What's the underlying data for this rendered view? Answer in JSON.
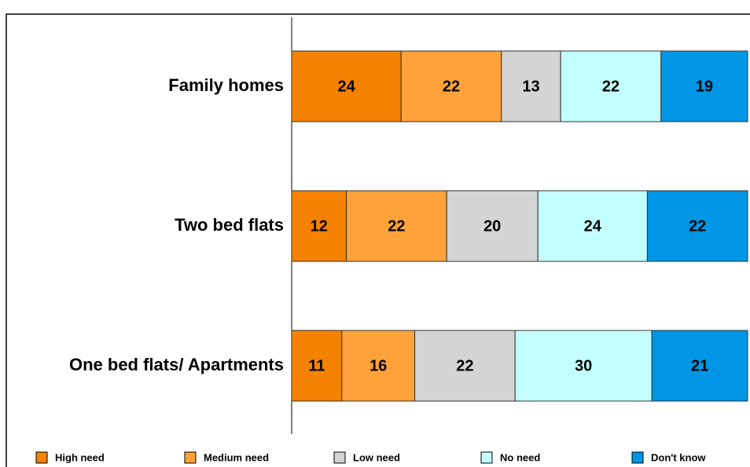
{
  "chart_data": {
    "type": "stacked_bar_horizontal",
    "categories": [
      "Family homes",
      "Two bed flats",
      "One bed flats/ Apartments"
    ],
    "series": [
      {
        "name": "High need",
        "color": "#f58200",
        "values": [
          24,
          12,
          11
        ]
      },
      {
        "name": "Medium need",
        "color": "#ffa23a",
        "values": [
          22,
          22,
          16
        ]
      },
      {
        "name": "Low  need",
        "color": "#d4d4d4",
        "values": [
          13,
          20,
          22
        ]
      },
      {
        "name": "No need",
        "color": "#c4ffff",
        "values": [
          22,
          24,
          30
        ]
      },
      {
        "name": "Don't know",
        "color": "#0096e6",
        "values": [
          19,
          22,
          21
        ]
      }
    ],
    "xlim": [
      0,
      100
    ]
  }
}
